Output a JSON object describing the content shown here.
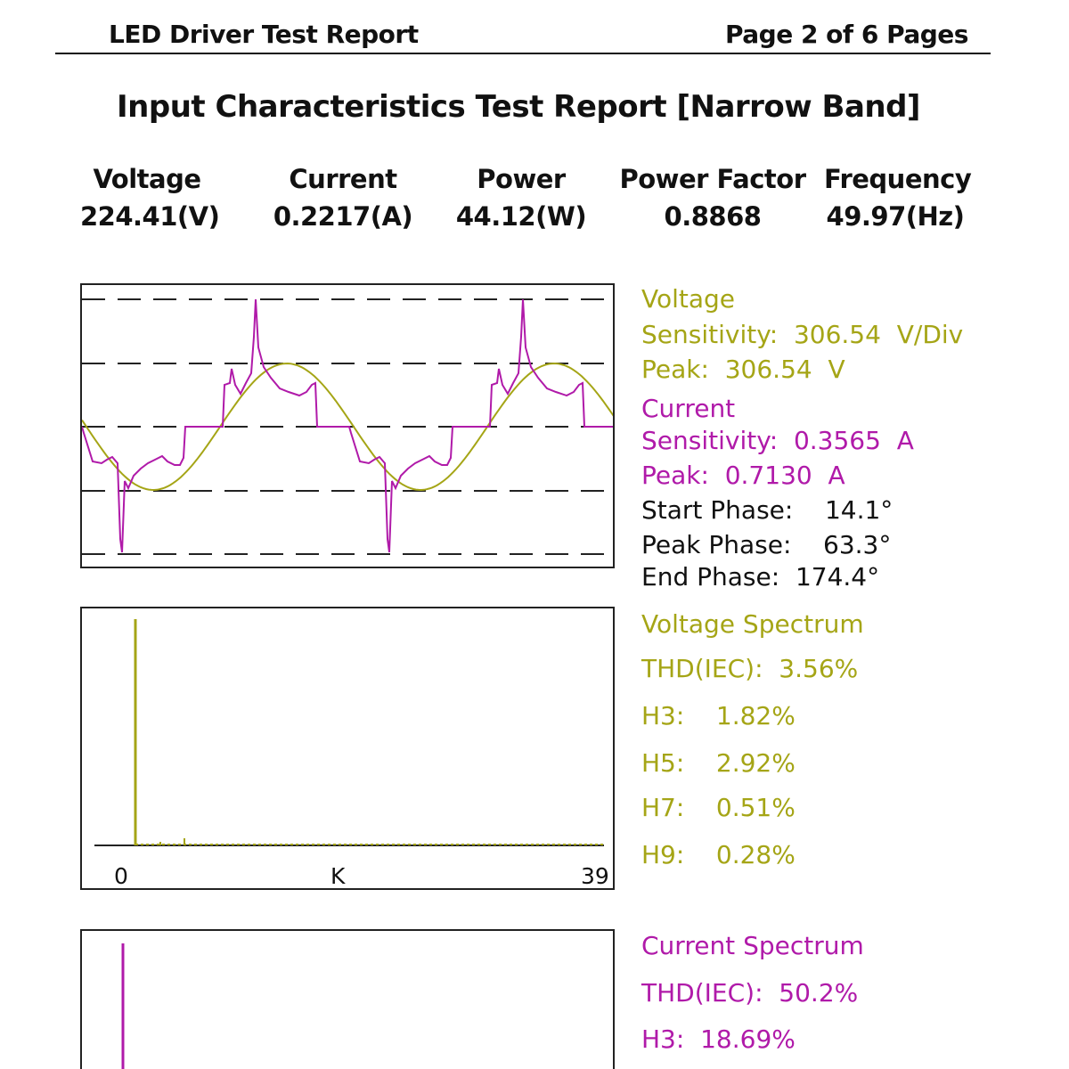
{
  "header": {
    "left": "LED Driver Test Report",
    "right": "Page 2 of 6 Pages"
  },
  "title": "Input Characteristics Test Report [Narrow Band]",
  "measurements": [
    {
      "label": "Voltage",
      "value": "224.41(V)"
    },
    {
      "label": "Current",
      "value": "0.2217(A)"
    },
    {
      "label": "Power",
      "value": "44.12(W)"
    },
    {
      "label": "Power Factor",
      "value": "0.8868"
    },
    {
      "label": "Frequency",
      "value": "49.97(Hz)"
    }
  ],
  "waveform_info": {
    "voltage_heading": "Voltage",
    "voltage_sensitivity": "Sensitivity:  306.54  V/Div",
    "voltage_peak": "Peak:  306.54  V",
    "current_heading": "Current",
    "current_sensitivity": "Sensitivity:  0.3565  A",
    "current_peak": "Peak:  0.7130  A",
    "start_phase": "Start Phase:    14.1°",
    "peak_phase": "Peak Phase:    63.3°",
    "end_phase": "End Phase:  174.4°"
  },
  "voltage_spectrum": {
    "heading": "Voltage Spectrum",
    "thd": "THD(IEC):  3.56%",
    "h3": "H3:    1.82%",
    "h5": "H5:    2.92%",
    "h7": "H7:    0.51%",
    "h9": "H9:    0.28%"
  },
  "current_spectrum": {
    "heading": "Current Spectrum",
    "thd": "THD(IEC):  50.2%",
    "h3": "H3:  18.69%"
  },
  "spectrum_axis": {
    "start": "0",
    "label": "K",
    "end": "39"
  },
  "colors": {
    "voltage": "#a5a516",
    "current": "#b01aa9"
  }
}
